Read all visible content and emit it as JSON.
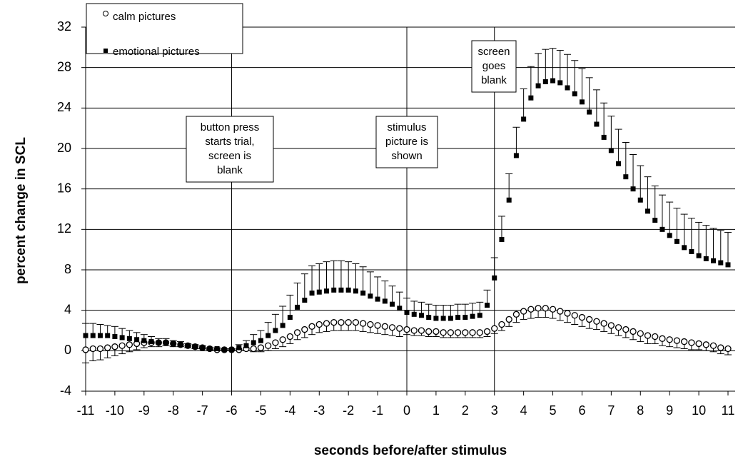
{
  "chart_data": {
    "type": "scatter",
    "xlabel": "seconds before/after stimulus",
    "ylabel": "percent change in SCL",
    "xlim": [
      -11,
      11
    ],
    "ylim": [
      -4,
      32
    ],
    "xticks": [
      -11,
      -10,
      -9,
      -8,
      -7,
      -6,
      -5,
      -4,
      -3,
      -2,
      -1,
      0,
      1,
      2,
      3,
      4,
      5,
      6,
      7,
      8,
      9,
      10,
      11
    ],
    "yticks": [
      -4,
      0,
      4,
      8,
      12,
      16,
      20,
      24,
      28,
      32
    ],
    "grid": true,
    "vlines": [
      -6,
      0,
      3
    ],
    "annotations": [
      [
        "button press",
        "starts trial,",
        "screen is",
        "blank"
      ],
      [
        "stimulus",
        "picture is",
        "shown"
      ],
      [
        "screen",
        "goes",
        "blank"
      ]
    ],
    "x": [
      -11,
      -10.75,
      -10.5,
      -10.25,
      -10,
      -9.75,
      -9.5,
      -9.25,
      -9,
      -8.75,
      -8.5,
      -8.25,
      -8,
      -7.75,
      -7.5,
      -7.25,
      -7,
      -6.75,
      -6.5,
      -6.25,
      -6,
      -5.75,
      -5.5,
      -5.25,
      -5,
      -4.75,
      -4.5,
      -4.25,
      -4,
      -3.75,
      -3.5,
      -3.25,
      -3,
      -2.75,
      -2.5,
      -2.25,
      -2,
      -1.75,
      -1.5,
      -1.25,
      -1,
      -0.75,
      -0.5,
      -0.25,
      0,
      0.25,
      0.5,
      0.75,
      1,
      1.25,
      1.5,
      1.75,
      2,
      2.25,
      2.5,
      2.75,
      3,
      3.25,
      3.5,
      3.75,
      4,
      4.25,
      4.5,
      4.75,
      5,
      5.25,
      5.5,
      5.75,
      6,
      6.25,
      6.5,
      6.75,
      7,
      7.25,
      7.5,
      7.75,
      8,
      8.25,
      8.5,
      8.75,
      9,
      9.25,
      9.5,
      9.75,
      10,
      10.25,
      10.5,
      10.75,
      11
    ],
    "series": [
      {
        "name": "calm pictures",
        "color": "#000000",
        "marker": "circle",
        "error_direction": "down",
        "values": [
          0.1,
          0.2,
          0.2,
          0.3,
          0.4,
          0.5,
          0.6,
          0.7,
          0.8,
          0.8,
          0.8,
          0.8,
          0.7,
          0.6,
          0.5,
          0.4,
          0.3,
          0.2,
          0.1,
          0.1,
          0.1,
          0.1,
          0.2,
          0.2,
          0.3,
          0.5,
          0.8,
          1.1,
          1.4,
          1.8,
          2.1,
          2.4,
          2.6,
          2.7,
          2.8,
          2.8,
          2.8,
          2.8,
          2.7,
          2.6,
          2.5,
          2.4,
          2.3,
          2.2,
          2.1,
          2.0,
          2.0,
          1.9,
          1.9,
          1.8,
          1.8,
          1.8,
          1.8,
          1.8,
          1.8,
          1.9,
          2.2,
          2.6,
          3.1,
          3.6,
          3.9,
          4.1,
          4.2,
          4.2,
          4.1,
          3.9,
          3.7,
          3.5,
          3.3,
          3.1,
          2.9,
          2.7,
          2.5,
          2.3,
          2.1,
          1.9,
          1.7,
          1.5,
          1.4,
          1.2,
          1.1,
          1.0,
          0.9,
          0.8,
          0.7,
          0.6,
          0.5,
          0.3,
          0.2
        ],
        "errors": [
          1.3,
          1.2,
          1.1,
          1.0,
          0.9,
          0.8,
          0.7,
          0.6,
          0.5,
          0.4,
          0.4,
          0.3,
          0.3,
          0.2,
          0.2,
          0.2,
          0.1,
          0.1,
          0.1,
          0.1,
          0.1,
          0.1,
          0.2,
          0.3,
          0.4,
          0.5,
          0.6,
          0.7,
          0.7,
          0.7,
          0.8,
          0.8,
          0.8,
          0.8,
          0.8,
          0.8,
          0.8,
          0.8,
          0.8,
          0.8,
          0.8,
          0.8,
          0.8,
          0.8,
          0.5,
          0.5,
          0.5,
          0.5,
          0.5,
          0.5,
          0.5,
          0.5,
          0.5,
          0.5,
          0.5,
          0.5,
          0.5,
          0.6,
          0.7,
          0.8,
          0.8,
          0.9,
          0.9,
          0.9,
          0.9,
          0.9,
          0.9,
          0.9,
          0.9,
          0.9,
          0.8,
          0.8,
          0.8,
          0.8,
          0.8,
          0.8,
          0.8,
          0.8,
          0.7,
          0.7,
          0.7,
          0.7,
          0.7,
          0.7,
          0.6,
          0.6,
          0.6,
          0.6,
          0.6
        ]
      },
      {
        "name": "emotional pictures",
        "color": "#000000",
        "marker": "square",
        "error_direction": "up",
        "values": [
          1.5,
          1.5,
          1.5,
          1.5,
          1.4,
          1.3,
          1.2,
          1.1,
          1.0,
          0.9,
          0.8,
          0.8,
          0.7,
          0.6,
          0.5,
          0.4,
          0.3,
          0.2,
          0.2,
          0.1,
          0.1,
          0.3,
          0.5,
          0.8,
          1.0,
          1.5,
          2.0,
          2.5,
          3.3,
          4.3,
          5.0,
          5.7,
          5.8,
          5.9,
          6.0,
          6.0,
          6.0,
          5.9,
          5.7,
          5.4,
          5.1,
          4.9,
          4.6,
          4.2,
          3.8,
          3.6,
          3.5,
          3.3,
          3.2,
          3.2,
          3.2,
          3.3,
          3.3,
          3.4,
          3.5,
          4.5,
          7.2,
          11.0,
          14.9,
          19.3,
          22.9,
          25.0,
          26.2,
          26.6,
          26.7,
          26.5,
          26.0,
          25.4,
          24.6,
          23.6,
          22.4,
          21.1,
          19.8,
          18.5,
          17.2,
          16.0,
          14.9,
          13.8,
          12.9,
          12.0,
          11.4,
          10.8,
          10.2,
          9.8,
          9.4,
          9.1,
          8.9,
          8.7,
          8.5
        ],
        "errors": [
          1.2,
          1.2,
          1.1,
          1.0,
          1.0,
          0.9,
          0.8,
          0.7,
          0.6,
          0.5,
          0.4,
          0.4,
          0.3,
          0.3,
          0.2,
          0.2,
          0.2,
          0.1,
          0.1,
          0.1,
          0.1,
          0.3,
          0.5,
          0.8,
          1.0,
          1.3,
          1.6,
          1.9,
          2.2,
          2.4,
          2.6,
          2.7,
          2.8,
          2.9,
          2.9,
          2.9,
          2.8,
          2.7,
          2.6,
          2.4,
          2.2,
          2.0,
          1.8,
          1.6,
          1.4,
          1.3,
          1.3,
          1.3,
          1.3,
          1.3,
          1.3,
          1.3,
          1.3,
          1.3,
          1.3,
          1.5,
          2.0,
          2.3,
          2.6,
          2.8,
          3.0,
          3.1,
          3.2,
          3.2,
          3.2,
          3.2,
          3.3,
          3.3,
          3.3,
          3.4,
          3.4,
          3.4,
          3.4,
          3.4,
          3.4,
          3.4,
          3.4,
          3.4,
          3.4,
          3.4,
          3.3,
          3.3,
          3.3,
          3.3,
          3.3,
          3.3,
          3.2,
          3.2,
          3.2
        ]
      }
    ]
  }
}
